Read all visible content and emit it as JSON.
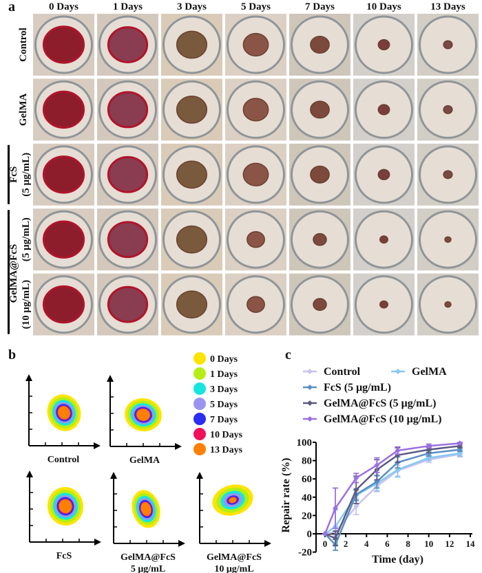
{
  "panel_a": {
    "label": "a",
    "columns": [
      "0 Days",
      "1 Days",
      "3 Days",
      "5 Days",
      "7 Days",
      "10 Days",
      "13 Days"
    ],
    "rows": [
      {
        "label": "Control",
        "sub": ""
      },
      {
        "label": "GelMA",
        "sub": ""
      },
      {
        "label": "FcS",
        "sub": "(5 μg/mL)"
      },
      {
        "label": "",
        "sub": "(5 μg/mL)"
      },
      {
        "label": "",
        "sub": "(10 μg/mL)"
      }
    ],
    "group_label": "GelMA@FcS"
  },
  "panel_b": {
    "label": "b",
    "legend": [
      {
        "label": "0 Days",
        "color": "#ffe400"
      },
      {
        "label": "1 Days",
        "color": "#b4ee16"
      },
      {
        "label": "3 Days",
        "color": "#16e6de"
      },
      {
        "label": "5 Days",
        "color": "#9a94f0"
      },
      {
        "label": "7 Days",
        "color": "#2a2ef0"
      },
      {
        "label": "10 Days",
        "color": "#f0105c"
      },
      {
        "label": "13 Days",
        "color": "#ff8000"
      }
    ],
    "plots": [
      {
        "line1": "Control",
        "line2": ""
      },
      {
        "line1": "GelMA",
        "line2": ""
      },
      {
        "line1": "FcS",
        "line2": ""
      },
      {
        "line1": "GelMA@FcS",
        "line2": "5 μg/mL"
      },
      {
        "line1": "GelMA@FcS",
        "line2": "10 μg/mL"
      }
    ]
  },
  "chart_data": {
    "label": "c",
    "type": "line",
    "xlabel": "Time (day)",
    "ylabel": "Repair rate (%)",
    "xlim": [
      -1,
      14
    ],
    "ylim": [
      -20,
      100
    ],
    "xticks": [
      0,
      2,
      4,
      6,
      8,
      10,
      12,
      14
    ],
    "yticks": [
      -20,
      0,
      20,
      40,
      60,
      80,
      100
    ],
    "x": [
      0,
      1,
      3,
      5,
      7,
      10,
      13
    ],
    "grid": false,
    "legend_position": "top",
    "series": [
      {
        "name": "Control",
        "color": "#c8c2ee",
        "values": [
          0,
          2,
          30,
          52,
          69,
          81,
          87
        ],
        "errors": [
          0,
          4,
          9,
          6,
          6,
          3,
          3
        ]
      },
      {
        "name": "GelMA",
        "color": "#86c8f4",
        "values": [
          0,
          8,
          42,
          55,
          70,
          83,
          88
        ],
        "errors": [
          0,
          18,
          6,
          8,
          8,
          3,
          3
        ]
      },
      {
        "name": "FcS (5 μg/mL)",
        "color": "#5a8fc2",
        "values": [
          0,
          -12,
          43,
          57,
          78,
          88,
          92
        ],
        "errors": [
          0,
          6,
          6,
          7,
          6,
          3,
          2
        ]
      },
      {
        "name": "GelMA@FcS (5 μg/mL)",
        "color": "#5b5a82",
        "values": [
          0,
          -5,
          48,
          70,
          86,
          92,
          96
        ],
        "errors": [
          0,
          8,
          15,
          11,
          8,
          3,
          2
        ]
      },
      {
        "name": "GelMA@FcS (10 μg/mL)",
        "color": "#9b6fe2",
        "values": [
          0,
          28,
          61,
          75,
          91,
          96,
          99
        ],
        "errors": [
          0,
          22,
          5,
          8,
          4,
          2,
          1
        ]
      }
    ]
  }
}
